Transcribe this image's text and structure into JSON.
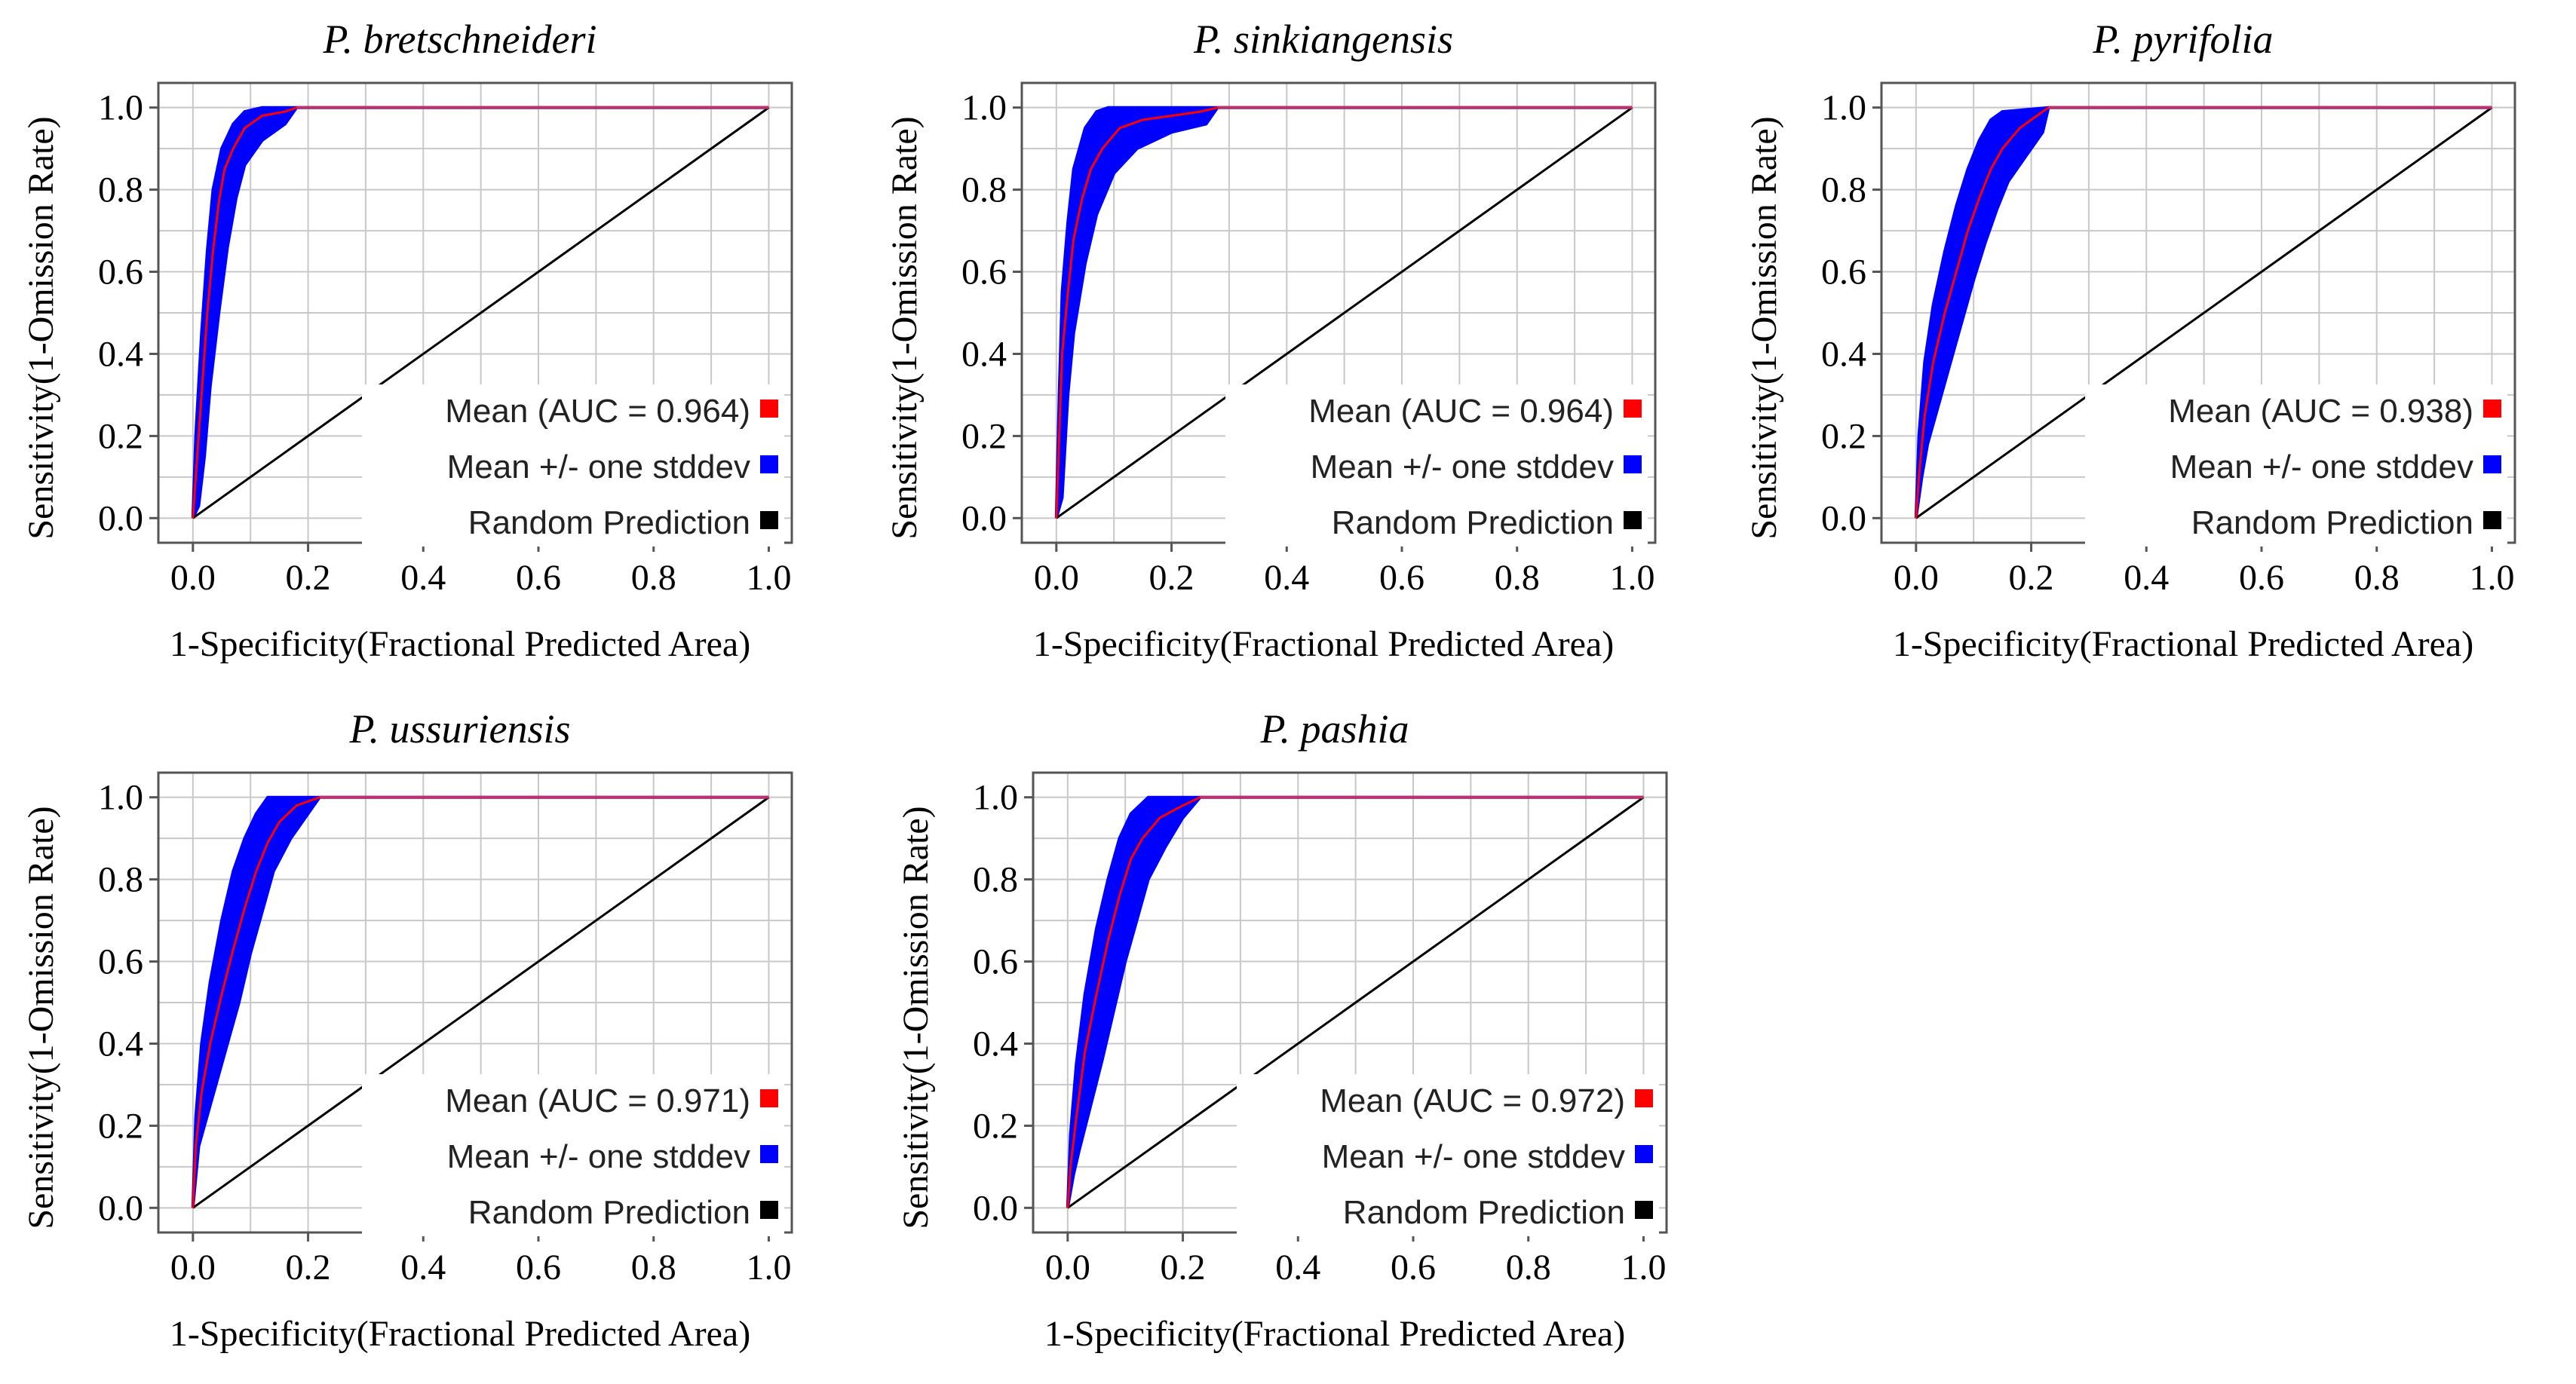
{
  "figure": {
    "x_axis_label": "1-Specificity(Fractional Predicted Area)",
    "y_axis_label": "Sensitivity(1-Omission Rate)"
  },
  "chart_data": [
    {
      "type": "line",
      "title": "P. bretschneideri",
      "xlabel": "1-Specificity(Fractional Predicted Area)",
      "ylabel": "Sensitivity(1-Omission Rate)",
      "xlim": [
        0,
        1
      ],
      "ylim": [
        0,
        1
      ],
      "xticks": [
        "0.0",
        "0.2",
        "0.4",
        "0.6",
        "0.8",
        "1.0"
      ],
      "yticks": [
        "0.0",
        "0.2",
        "0.4",
        "0.6",
        "0.8",
        "1.0"
      ],
      "grid": true,
      "legend": [
        {
          "label": "Mean (AUC = 0.964)",
          "color": "#ff0000"
        },
        {
          "label": "Mean +/- one stddev",
          "color": "#0000ff"
        },
        {
          "label": "Random Prediction",
          "color": "#000000"
        }
      ],
      "series": [
        {
          "name": "Mean",
          "color": "#ff0000",
          "x": [
            0,
            0.005,
            0.015,
            0.025,
            0.035,
            0.045,
            0.055,
            0.07,
            0.09,
            0.12,
            0.16,
            0.18,
            1.0
          ],
          "y": [
            0,
            0.1,
            0.3,
            0.5,
            0.65,
            0.77,
            0.85,
            0.9,
            0.95,
            0.98,
            0.99,
            1.0,
            1.0
          ]
        },
        {
          "name": "Mean + stddev",
          "color": "#0000ff",
          "x": [
            0,
            0.005,
            0.015,
            0.025,
            0.035,
            0.05,
            0.07,
            0.09,
            0.12,
            0.18,
            1.0
          ],
          "y": [
            0,
            0.2,
            0.45,
            0.65,
            0.8,
            0.9,
            0.96,
            0.99,
            1.0,
            1.0,
            1.0
          ]
        },
        {
          "name": "Mean - stddev",
          "color": "#0000ff",
          "x": [
            0,
            0.01,
            0.02,
            0.03,
            0.045,
            0.06,
            0.075,
            0.09,
            0.12,
            0.16,
            0.18,
            1.0
          ],
          "y": [
            0,
            0.03,
            0.15,
            0.32,
            0.5,
            0.66,
            0.78,
            0.86,
            0.92,
            0.96,
            1.0,
            1.0
          ]
        },
        {
          "name": "Random Prediction",
          "color": "#000000",
          "x": [
            0,
            1
          ],
          "y": [
            0,
            1
          ]
        }
      ]
    },
    {
      "type": "line",
      "title": "P. sinkiangensis",
      "xlabel": "1-Specificity(Fractional Predicted Area)",
      "ylabel": "Sensitivity(1-Omission Rate)",
      "xlim": [
        0,
        1
      ],
      "ylim": [
        0,
        1
      ],
      "xticks": [
        "0.0",
        "0.2",
        "0.4",
        "0.6",
        "0.8",
        "1.0"
      ],
      "yticks": [
        "0.0",
        "0.2",
        "0.4",
        "0.6",
        "0.8",
        "1.0"
      ],
      "grid": true,
      "legend": [
        {
          "label": "Mean (AUC = 0.964)",
          "color": "#ff0000"
        },
        {
          "label": "Mean +/- one stddev",
          "color": "#0000ff"
        },
        {
          "label": "Random Prediction",
          "color": "#000000"
        }
      ],
      "series": [
        {
          "name": "Mean",
          "color": "#ff0000",
          "x": [
            0,
            0.005,
            0.01,
            0.02,
            0.03,
            0.045,
            0.06,
            0.08,
            0.11,
            0.15,
            0.2,
            0.25,
            0.28,
            1.0
          ],
          "y": [
            0,
            0.2,
            0.4,
            0.55,
            0.68,
            0.78,
            0.85,
            0.9,
            0.95,
            0.97,
            0.98,
            0.99,
            1.0,
            1.0
          ]
        },
        {
          "name": "Mean + stddev",
          "color": "#0000ff",
          "x": [
            0,
            0.005,
            0.01,
            0.02,
            0.03,
            0.05,
            0.07,
            0.09,
            0.28,
            1.0
          ],
          "y": [
            0,
            0.3,
            0.55,
            0.72,
            0.85,
            0.95,
            0.99,
            1.0,
            1.0,
            1.0
          ]
        },
        {
          "name": "Mean - stddev",
          "color": "#0000ff",
          "x": [
            0,
            0.01,
            0.02,
            0.03,
            0.05,
            0.07,
            0.1,
            0.14,
            0.2,
            0.26,
            0.28,
            1.0
          ],
          "y": [
            0,
            0.05,
            0.3,
            0.45,
            0.62,
            0.74,
            0.84,
            0.9,
            0.94,
            0.96,
            1.0,
            1.0
          ]
        },
        {
          "name": "Random Prediction",
          "color": "#000000",
          "x": [
            0,
            1
          ],
          "y": [
            0,
            1
          ]
        }
      ]
    },
    {
      "type": "line",
      "title": "P. pyrifolia",
      "xlabel": "1-Specificity(Fractional Predicted Area)",
      "ylabel": "Sensitivity(1-Omission Rate)",
      "xlim": [
        0,
        1
      ],
      "ylim": [
        0,
        1
      ],
      "xticks": [
        "0.0",
        "0.2",
        "0.4",
        "0.6",
        "0.8",
        "1.0"
      ],
      "yticks": [
        "0.0",
        "0.2",
        "0.4",
        "0.6",
        "0.8",
        "1.0"
      ],
      "grid": true,
      "legend": [
        {
          "label": "Mean (AUC = 0.938)",
          "color": "#ff0000"
        },
        {
          "label": "Mean +/- one stddev",
          "color": "#0000ff"
        },
        {
          "label": "Random Prediction",
          "color": "#000000"
        }
      ],
      "series": [
        {
          "name": "Mean",
          "color": "#ff0000",
          "x": [
            0,
            0.005,
            0.015,
            0.03,
            0.05,
            0.07,
            0.09,
            0.11,
            0.13,
            0.15,
            0.18,
            0.2,
            0.22,
            0.23,
            1.0
          ],
          "y": [
            0,
            0.1,
            0.25,
            0.38,
            0.5,
            0.6,
            0.7,
            0.78,
            0.85,
            0.9,
            0.95,
            0.97,
            0.99,
            1.0,
            1.0
          ]
        },
        {
          "name": "Mean + stddev",
          "color": "#0000ff",
          "x": [
            0,
            0.005,
            0.015,
            0.03,
            0.05,
            0.07,
            0.09,
            0.11,
            0.13,
            0.15,
            0.23,
            1.0
          ],
          "y": [
            0,
            0.2,
            0.38,
            0.52,
            0.65,
            0.76,
            0.85,
            0.92,
            0.97,
            0.99,
            1.0,
            1.0
          ]
        },
        {
          "name": "Mean - stddev",
          "color": "#0000ff",
          "x": [
            0,
            0.01,
            0.02,
            0.04,
            0.06,
            0.08,
            0.1,
            0.12,
            0.14,
            0.16,
            0.19,
            0.22,
            0.23,
            1.0
          ],
          "y": [
            0,
            0.1,
            0.18,
            0.28,
            0.38,
            0.48,
            0.58,
            0.67,
            0.75,
            0.82,
            0.88,
            0.94,
            1.0,
            1.0
          ]
        },
        {
          "name": "Random Prediction",
          "color": "#000000",
          "x": [
            0,
            1
          ],
          "y": [
            0,
            1
          ]
        }
      ]
    },
    {
      "type": "line",
      "title": "P. ussuriensis",
      "xlabel": "1-Specificity(Fractional Predicted Area)",
      "ylabel": "Sensitivity(1-Omission Rate)",
      "xlim": [
        0,
        1
      ],
      "ylim": [
        0,
        1
      ],
      "xticks": [
        "0.0",
        "0.2",
        "0.4",
        "0.6",
        "0.8",
        "1.0"
      ],
      "yticks": [
        "0.0",
        "0.2",
        "0.4",
        "0.6",
        "0.8",
        "1.0"
      ],
      "grid": true,
      "legend": [
        {
          "label": "Mean (AUC = 0.971)",
          "color": "#ff0000"
        },
        {
          "label": "Mean +/- one stddev",
          "color": "#0000ff"
        },
        {
          "label": "Random Prediction",
          "color": "#000000"
        }
      ],
      "series": [
        {
          "name": "Mean",
          "color": "#ff0000",
          "x": [
            0,
            0.005,
            0.015,
            0.03,
            0.05,
            0.07,
            0.09,
            0.11,
            0.13,
            0.15,
            0.18,
            0.22,
            1.0
          ],
          "y": [
            0,
            0.15,
            0.28,
            0.4,
            0.52,
            0.63,
            0.73,
            0.82,
            0.89,
            0.94,
            0.98,
            1.0,
            1.0
          ]
        },
        {
          "name": "Mean + stddev",
          "color": "#0000ff",
          "x": [
            0,
            0.005,
            0.015,
            0.03,
            0.05,
            0.07,
            0.09,
            0.11,
            0.13,
            0.22,
            1.0
          ],
          "y": [
            0,
            0.22,
            0.4,
            0.55,
            0.7,
            0.82,
            0.9,
            0.96,
            1.0,
            1.0,
            1.0
          ]
        },
        {
          "name": "Mean - stddev",
          "color": "#0000ff",
          "x": [
            0,
            0.01,
            0.02,
            0.04,
            0.06,
            0.08,
            0.1,
            0.12,
            0.14,
            0.17,
            0.2,
            0.22,
            1.0
          ],
          "y": [
            0,
            0.15,
            0.2,
            0.3,
            0.4,
            0.5,
            0.62,
            0.72,
            0.82,
            0.9,
            0.96,
            1.0,
            1.0
          ]
        },
        {
          "name": "Random Prediction",
          "color": "#000000",
          "x": [
            0,
            1
          ],
          "y": [
            0,
            1
          ]
        }
      ]
    },
    {
      "type": "line",
      "title": "P. pashia",
      "xlabel": "1-Specificity(Fractional Predicted Area)",
      "ylabel": "Sensitivity(1-Omission Rate)",
      "xlim": [
        0,
        1
      ],
      "ylim": [
        0,
        1
      ],
      "xticks": [
        "0.0",
        "0.2",
        "0.4",
        "0.6",
        "0.8",
        "1.0"
      ],
      "yticks": [
        "0.0",
        "0.2",
        "0.4",
        "0.6",
        "0.8",
        "1.0"
      ],
      "grid": true,
      "legend": [
        {
          "label": "Mean (AUC = 0.972)",
          "color": "#ff0000"
        },
        {
          "label": "Mean +/- one stddev",
          "color": "#0000ff"
        },
        {
          "label": "Random Prediction",
          "color": "#000000"
        }
      ],
      "series": [
        {
          "name": "Mean",
          "color": "#ff0000",
          "x": [
            0,
            0.005,
            0.015,
            0.03,
            0.05,
            0.07,
            0.09,
            0.11,
            0.13,
            0.16,
            0.2,
            0.23,
            1.0
          ],
          "y": [
            0,
            0.1,
            0.22,
            0.38,
            0.52,
            0.65,
            0.76,
            0.85,
            0.9,
            0.95,
            0.98,
            1.0,
            1.0
          ]
        },
        {
          "name": "Mean + stddev",
          "color": "#0000ff",
          "x": [
            0,
            0.005,
            0.015,
            0.03,
            0.05,
            0.07,
            0.09,
            0.11,
            0.14,
            0.23,
            1.0
          ],
          "y": [
            0,
            0.18,
            0.35,
            0.52,
            0.68,
            0.8,
            0.9,
            0.96,
            1.0,
            1.0,
            1.0
          ]
        },
        {
          "name": "Mean - stddev",
          "color": "#0000ff",
          "x": [
            0,
            0.01,
            0.02,
            0.04,
            0.06,
            0.08,
            0.1,
            0.12,
            0.14,
            0.17,
            0.2,
            0.23,
            1.0
          ],
          "y": [
            0,
            0.08,
            0.14,
            0.25,
            0.36,
            0.48,
            0.6,
            0.7,
            0.8,
            0.88,
            0.95,
            1.0,
            1.0
          ]
        },
        {
          "name": "Random Prediction",
          "color": "#000000",
          "x": [
            0,
            1
          ],
          "y": [
            0,
            1
          ]
        }
      ]
    }
  ]
}
